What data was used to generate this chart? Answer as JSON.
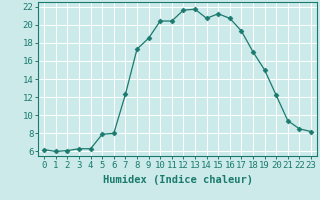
{
  "x": [
    0,
    1,
    2,
    3,
    4,
    5,
    6,
    7,
    8,
    9,
    10,
    11,
    12,
    13,
    14,
    15,
    16,
    17,
    18,
    19,
    20,
    21,
    22,
    23
  ],
  "y": [
    6.2,
    6.0,
    6.1,
    6.3,
    6.3,
    7.9,
    8.0,
    12.3,
    17.3,
    18.5,
    20.4,
    20.4,
    21.6,
    21.7,
    20.7,
    21.2,
    20.7,
    19.3,
    17.0,
    15.0,
    12.2,
    9.4,
    8.5,
    8.2
  ],
  "line_color": "#1a7a6e",
  "marker": "D",
  "marker_size": 2.5,
  "bg_color": "#cceaea",
  "grid_color": "#ffffff",
  "tick_color": "#1a7a6e",
  "xlabel": "Humidex (Indice chaleur)",
  "xlim": [
    -0.5,
    23.5
  ],
  "ylim": [
    5.5,
    22.5
  ],
  "yticks": [
    6,
    8,
    10,
    12,
    14,
    16,
    18,
    20,
    22
  ],
  "xticks": [
    0,
    1,
    2,
    3,
    4,
    5,
    6,
    7,
    8,
    9,
    10,
    11,
    12,
    13,
    14,
    15,
    16,
    17,
    18,
    19,
    20,
    21,
    22,
    23
  ],
  "tick_fontsize": 6.5,
  "label_fontsize": 7.5
}
